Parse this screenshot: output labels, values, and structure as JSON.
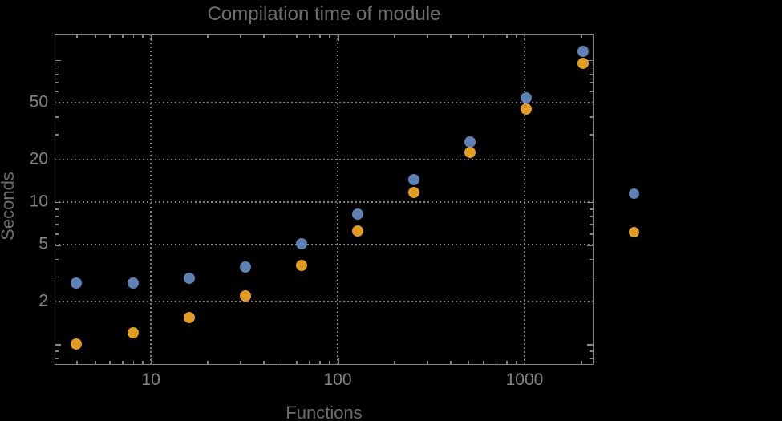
{
  "chart_data": {
    "type": "scatter",
    "title": "Compilation time of module",
    "xlabel": "Functions",
    "ylabel": "Seconds",
    "x_scale": "log",
    "y_scale": "log",
    "x_domain": [
      3.05,
      2340
    ],
    "y_domain": [
      0.717,
      150.7
    ],
    "x_tick_labels": [
      10,
      100,
      1000
    ],
    "y_tick_labels": [
      2,
      5,
      10,
      20,
      50
    ],
    "grid": "dotted gridlines at labeled ticks only",
    "legend_position": "right-outside, markers only (labels not visible)",
    "x": [
      4,
      8,
      16,
      32,
      64,
      128,
      256,
      512,
      1024,
      2048
    ],
    "series": [
      {
        "name": "series-blue",
        "color": "#5E81B5",
        "values": [
          2.7,
          2.7,
          2.9,
          3.5,
          5.1,
          8.2,
          14.3,
          26.5,
          54,
          115
        ]
      },
      {
        "name": "series-orange",
        "color": "#E19C24",
        "values": [
          1.0,
          1.2,
          1.55,
          2.2,
          3.6,
          6.3,
          11.7,
          22.4,
          45,
          94
        ]
      }
    ],
    "colors": {
      "background": "#000000",
      "frame": "#878787",
      "grid": "#7e7e7e",
      "tick_label": "#828282",
      "title_text": "#6e6e6e",
      "axis_label_text": "#6e6e6e"
    }
  }
}
